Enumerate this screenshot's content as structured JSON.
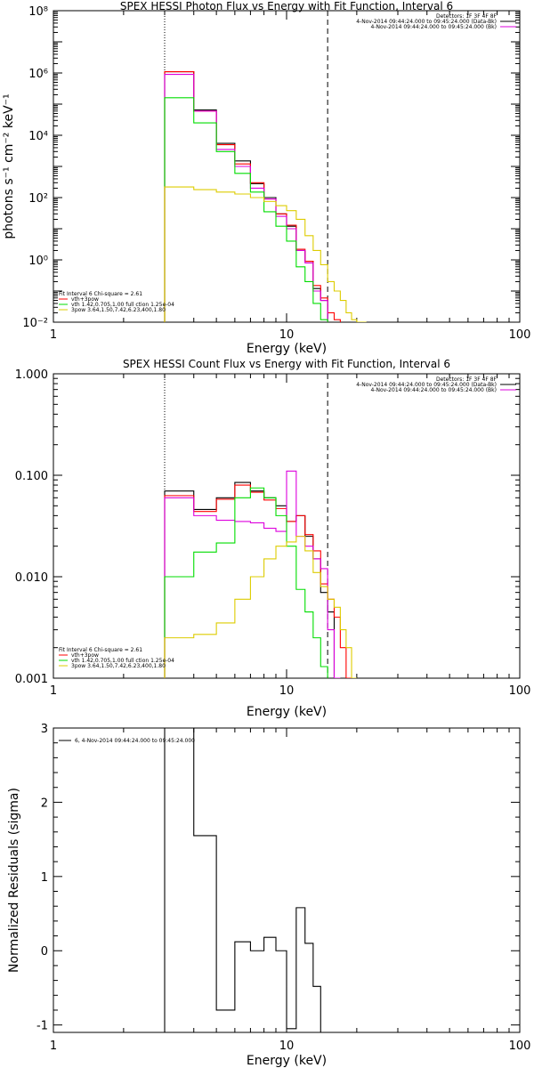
{
  "colors": {
    "black": "#000000",
    "red": "#ff0000",
    "green": "#00dd00",
    "magenta": "#dd00dd",
    "yellow": "#ddcc00"
  },
  "chart_data": [
    {
      "type": "line",
      "title": "SPEX HESSI Photon Flux vs Energy with Fit Function, Interval 6",
      "xlabel": "Energy (keV)",
      "ylabel": "photons s⁻¹ cm⁻² keV⁻¹",
      "xscale": "log",
      "yscale": "log",
      "xlim": [
        1,
        100
      ],
      "ylim": [
        0.01,
        100000000
      ],
      "x_tick_labels": [
        "1",
        "10",
        "100"
      ],
      "y_tick_labels": [
        "10⁻²",
        "10⁰",
        "10²",
        "10⁴",
        "10⁶",
        "10⁸"
      ],
      "vlines": [
        {
          "x": 3,
          "style": "dotted"
        },
        {
          "x": 15,
          "style": "dashed"
        }
      ],
      "legend_right": [
        {
          "text": "Detectors: 1F 3F 4F 8F",
          "color": "#000000"
        },
        {
          "text": "4-Nov-2014 09:44:24.000 to 09:45:24.000 (Data-Bk)",
          "color": "#000000"
        },
        {
          "text": "4-Nov-2014 09:44:24.000 to 09:45:24.000 (Bk)",
          "color": "#dd00dd"
        }
      ],
      "legend_left": [
        {
          "text": "Fit Interval 6   Chi-square = 2.61",
          "color": "#000000"
        },
        {
          "text": "vth+3pow",
          "color": "#ff0000"
        },
        {
          "text": "vth 1.42,0.705,1.00  full ction 1.25e-04",
          "color": "#00dd00"
        },
        {
          "text": "3pow 3.64,1.50,7.42,6.23,400,1.80",
          "color": "#ddcc00"
        }
      ],
      "bin_edges": [
        3,
        4,
        5,
        6,
        7,
        8,
        9,
        10,
        11,
        12,
        13,
        14,
        15,
        16,
        17,
        18,
        19,
        20,
        21,
        22
      ],
      "series": [
        {
          "color": "#000000",
          "values": [
            1100000,
            65000,
            5500,
            1500,
            280,
            100,
            30,
            12,
            2,
            0.9,
            0.12,
            0.05,
            null,
            null,
            null,
            null,
            null,
            null,
            null
          ]
        },
        {
          "color": "#ff0000",
          "values": [
            1100000,
            60000,
            5000,
            1200,
            300,
            90,
            30,
            13,
            2.2,
            0.9,
            0.15,
            0.06,
            0.02,
            0.012,
            null,
            null,
            null,
            null,
            null
          ]
        },
        {
          "color": "#dd00dd",
          "values": [
            900000,
            60000,
            3500,
            1000,
            200,
            90,
            25,
            10,
            2,
            0.8,
            0.1,
            0.05,
            null,
            null,
            null,
            null,
            null,
            null,
            null
          ]
        },
        {
          "color": "#00dd00",
          "values": [
            160000,
            25000,
            3000,
            600,
            150,
            35,
            12,
            4,
            0.6,
            0.2,
            0.04,
            0.012,
            null,
            null,
            null,
            null,
            null,
            null,
            null
          ]
        },
        {
          "color": "#ddcc00",
          "values": [
            220,
            180,
            150,
            130,
            100,
            75,
            55,
            38,
            20,
            6,
            2,
            0.7,
            0.2,
            0.1,
            0.05,
            0.02,
            0.012,
            0.01,
            0.01
          ]
        }
      ]
    },
    {
      "type": "line",
      "title": "SPEX HESSI Count Flux vs Energy with Fit Function, Interval 6",
      "xlabel": "Energy (keV)",
      "ylabel": "",
      "xscale": "log",
      "yscale": "log",
      "xlim": [
        1,
        100
      ],
      "ylim": [
        0.001,
        1
      ],
      "x_tick_labels": [
        "1",
        "10",
        "100"
      ],
      "y_tick_labels": [
        "0.001",
        "0.010",
        "0.100",
        "1.000"
      ],
      "vlines": [
        {
          "x": 3,
          "style": "dotted"
        },
        {
          "x": 15,
          "style": "dashed"
        }
      ],
      "legend_right": [
        {
          "text": "Detectors: 1F 3F 4F 8F",
          "color": "#000000"
        },
        {
          "text": "4-Nov-2014 09:44:24.000 to 09:45:24.000 (Data-Bk)",
          "color": "#000000"
        },
        {
          "text": "4-Nov-2014 09:44:24.000 to 09:45:24.000 (Bk)",
          "color": "#dd00dd"
        }
      ],
      "legend_left": [
        {
          "text": "Fit Interval 6   Chi-square = 2.61",
          "color": "#000000"
        },
        {
          "text": "vth+3pow",
          "color": "#ff0000"
        },
        {
          "text": "vth 1.42,0.705,1.00  full ction 1.25e-04",
          "color": "#00dd00"
        },
        {
          "text": "3pow 3.64,1.50,7.42,6.23,400,1.80",
          "color": "#ddcc00"
        }
      ],
      "bin_edges": [
        3,
        4,
        5,
        6,
        7,
        8,
        9,
        10,
        11,
        12,
        13,
        14,
        15,
        16,
        17,
        18,
        19,
        20
      ],
      "series": [
        {
          "color": "#000000",
          "values": [
            0.07,
            0.046,
            0.06,
            0.085,
            0.07,
            0.06,
            0.05,
            0.035,
            0.04,
            0.025,
            0.015,
            0.007,
            0.0045,
            null,
            null,
            null,
            null
          ]
        },
        {
          "color": "#ff0000",
          "values": [
            0.063,
            0.044,
            0.058,
            0.08,
            0.068,
            0.057,
            0.047,
            0.035,
            0.04,
            0.026,
            0.018,
            0.0085,
            0.006,
            0.004,
            0.002,
            0.001,
            null
          ]
        },
        {
          "color": "#dd00dd",
          "values": [
            0.06,
            0.04,
            0.036,
            0.035,
            0.034,
            0.03,
            0.028,
            0.11,
            0.025,
            0.02,
            0.015,
            0.012,
            0.003,
            0.001,
            null,
            null,
            null
          ]
        },
        {
          "color": "#00dd00",
          "values": [
            0.01,
            0.0175,
            0.0215,
            0.06,
            0.075,
            0.06,
            0.04,
            0.02,
            0.0075,
            0.0045,
            0.0025,
            0.0013,
            null,
            null,
            null,
            null,
            null
          ]
        },
        {
          "color": "#ddcc00",
          "values": [
            0.0025,
            0.0027,
            0.0035,
            0.006,
            0.01,
            0.015,
            0.02,
            0.022,
            0.025,
            0.018,
            0.011,
            0.008,
            0.006,
            0.005,
            0.003,
            0.002,
            0.001
          ]
        }
      ]
    },
    {
      "type": "line",
      "title": "",
      "xlabel": "Energy (keV)",
      "ylabel": "Normalized Residuals (sigma)",
      "xscale": "log",
      "yscale": "linear",
      "xlim": [
        1,
        100
      ],
      "ylim": [
        -1.1,
        3.0
      ],
      "x_tick_labels": [
        "1",
        "10",
        "100"
      ],
      "y_tick_labels": [
        "-1",
        "0",
        "1",
        "2",
        "3"
      ],
      "y_tick_values": [
        -1,
        0,
        1,
        2,
        3
      ],
      "legend_left": [
        {
          "text": "6,  4-Nov-2014 09:44:24.000 to 09:45:24.000",
          "color": "#000000"
        }
      ],
      "bin_edges": [
        3,
        4,
        5,
        6,
        7,
        8,
        9,
        10,
        11,
        12,
        13,
        14,
        15
      ],
      "series": [
        {
          "color": "#000000",
          "values": [
            3.0,
            1.55,
            -0.8,
            0.12,
            0.0,
            0.18,
            0.0,
            -1.05,
            0.58,
            0.1,
            -0.48,
            null
          ]
        }
      ]
    }
  ]
}
